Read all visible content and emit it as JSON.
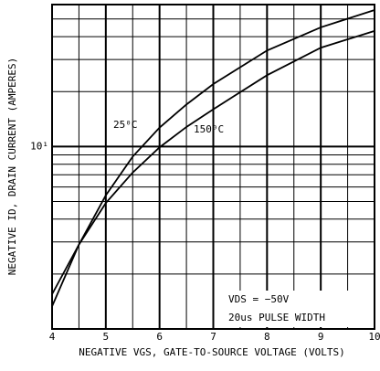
{
  "chart_data": {
    "type": "line",
    "x_label": "NEGATIVE VGS, GATE-TO-SOURCE VOLTAGE (VOLTS)",
    "y_label": "NEGATIVE ID, DRAIN CURRENT (AMPERES)",
    "x": [
      4,
      4.5,
      5,
      5.5,
      6,
      6.5,
      7,
      8,
      9,
      10
    ],
    "series": [
      {
        "name": "25⁰C",
        "color": "#000000",
        "values": [
          1.33,
          2.9,
          5.4,
          8.8,
          12.7,
          17,
          22,
          33.6,
          45,
          56
        ]
      },
      {
        "name": "150⁰C",
        "color": "#000000",
        "values": [
          1.55,
          2.9,
          4.9,
          7.2,
          9.9,
          12.8,
          16,
          24.6,
          34.8,
          43
        ]
      }
    ],
    "annotations": [
      "VDS = −50V",
      "20us PULSE WIDTH"
    ],
    "xlim": [
      4,
      10
    ],
    "xticks": [
      4,
      5,
      6,
      7,
      8,
      9,
      10
    ],
    "xgrid": [
      4.5,
      5.5,
      6.5,
      7.5,
      8.5,
      9.5
    ],
    "ylim": [
      1,
      60
    ],
    "ylog": true,
    "yticks": [
      {
        "value": 10,
        "label": "10¹"
      }
    ],
    "ygrid": [
      2,
      3,
      4,
      5,
      6,
      7,
      8,
      9,
      20,
      30,
      40,
      50,
      60
    ],
    "grid": true
  }
}
